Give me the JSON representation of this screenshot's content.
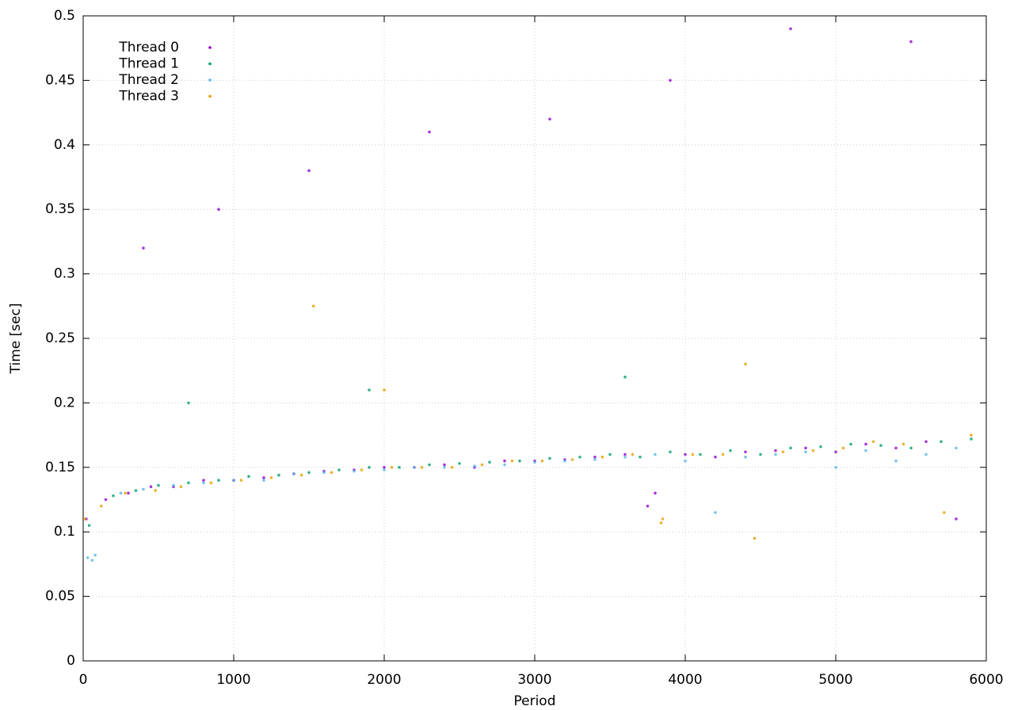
{
  "chart_data": {
    "type": "scatter",
    "x_label": "Period",
    "y_label": "Time [sec]",
    "xlim": [
      0,
      6000
    ],
    "xticks": [
      0,
      1000,
      2000,
      3000,
      4000,
      5000,
      6000
    ],
    "ylim": [
      0,
      0.5
    ],
    "yticks": [
      0,
      0.05,
      0.1,
      0.15,
      0.2,
      0.25,
      0.3,
      0.35,
      0.4,
      0.45,
      0.5
    ],
    "grid": true,
    "legend": "top-left",
    "series": [
      {
        "name": "Thread 0",
        "color": "#9400d3",
        "x": [
          20,
          150,
          300,
          450,
          600,
          800,
          1000,
          1200,
          1400,
          1600,
          1800,
          2000,
          2200,
          2400,
          2600,
          2800,
          3000,
          3200,
          3400,
          3600,
          3750,
          3800,
          4000,
          4200,
          4400,
          4600,
          4800,
          5000,
          5200,
          5400,
          5600,
          5800,
          400,
          900,
          1500,
          2300,
          3100,
          3900,
          4700,
          5500
        ],
        "values": [
          0.11,
          0.125,
          0.13,
          0.135,
          0.135,
          0.14,
          0.14,
          0.142,
          0.145,
          0.147,
          0.148,
          0.15,
          0.15,
          0.152,
          0.15,
          0.155,
          0.155,
          0.156,
          0.158,
          0.16,
          0.12,
          0.13,
          0.16,
          0.158,
          0.162,
          0.163,
          0.165,
          0.162,
          0.168,
          0.165,
          0.17,
          0.11,
          0.32,
          0.35,
          0.38,
          0.41,
          0.42,
          0.45,
          0.49,
          0.48
        ]
      },
      {
        "name": "Thread 1",
        "color": "#009e73",
        "x": [
          40,
          200,
          350,
          500,
          700,
          900,
          1100,
          1300,
          1500,
          1700,
          1900,
          2100,
          2300,
          2500,
          2700,
          2900,
          3100,
          3300,
          3500,
          3700,
          3900,
          4100,
          4300,
          4500,
          4700,
          4900,
          5100,
          5300,
          5500,
          5700,
          5900,
          700,
          1900,
          3600
        ],
        "values": [
          0.105,
          0.128,
          0.132,
          0.136,
          0.138,
          0.14,
          0.143,
          0.144,
          0.146,
          0.148,
          0.15,
          0.15,
          0.152,
          0.153,
          0.154,
          0.155,
          0.157,
          0.158,
          0.16,
          0.158,
          0.162,
          0.16,
          0.163,
          0.16,
          0.165,
          0.166,
          0.168,
          0.167,
          0.165,
          0.17,
          0.172,
          0.2,
          0.21,
          0.22
        ]
      },
      {
        "name": "Thread 2",
        "color": "#56b4e9",
        "x": [
          30,
          60,
          80,
          250,
          400,
          600,
          800,
          1000,
          1200,
          1400,
          1600,
          1800,
          2000,
          2200,
          2400,
          2600,
          2800,
          3000,
          3200,
          3400,
          3600,
          3800,
          4000,
          4200,
          4400,
          4600,
          4800,
          5000,
          5200,
          5400,
          5600,
          5800
        ],
        "values": [
          0.08,
          0.078,
          0.082,
          0.13,
          0.133,
          0.136,
          0.138,
          0.14,
          0.14,
          0.145,
          0.146,
          0.147,
          0.148,
          0.15,
          0.15,
          0.151,
          0.152,
          0.154,
          0.155,
          0.156,
          0.158,
          0.16,
          0.155,
          0.115,
          0.158,
          0.16,
          0.162,
          0.15,
          0.163,
          0.155,
          0.16,
          0.165
        ]
      },
      {
        "name": "Thread 3",
        "color": "#e69f00",
        "x": [
          10,
          120,
          280,
          480,
          650,
          850,
          1050,
          1250,
          1450,
          1650,
          1850,
          2050,
          2250,
          2450,
          2650,
          2850,
          3050,
          3250,
          3450,
          3650,
          3840,
          3850,
          4050,
          4250,
          4460,
          4650,
          4850,
          5050,
          5250,
          5450,
          5720,
          5900,
          1530,
          2000,
          4400
        ],
        "values": [
          0.11,
          0.12,
          0.13,
          0.132,
          0.135,
          0.138,
          0.14,
          0.142,
          0.144,
          0.146,
          0.148,
          0.15,
          0.15,
          0.15,
          0.152,
          0.155,
          0.155,
          0.156,
          0.158,
          0.16,
          0.107,
          0.11,
          0.16,
          0.16,
          0.095,
          0.162,
          0.163,
          0.165,
          0.17,
          0.168,
          0.115,
          0.175,
          0.275,
          0.21,
          0.23
        ]
      }
    ]
  }
}
